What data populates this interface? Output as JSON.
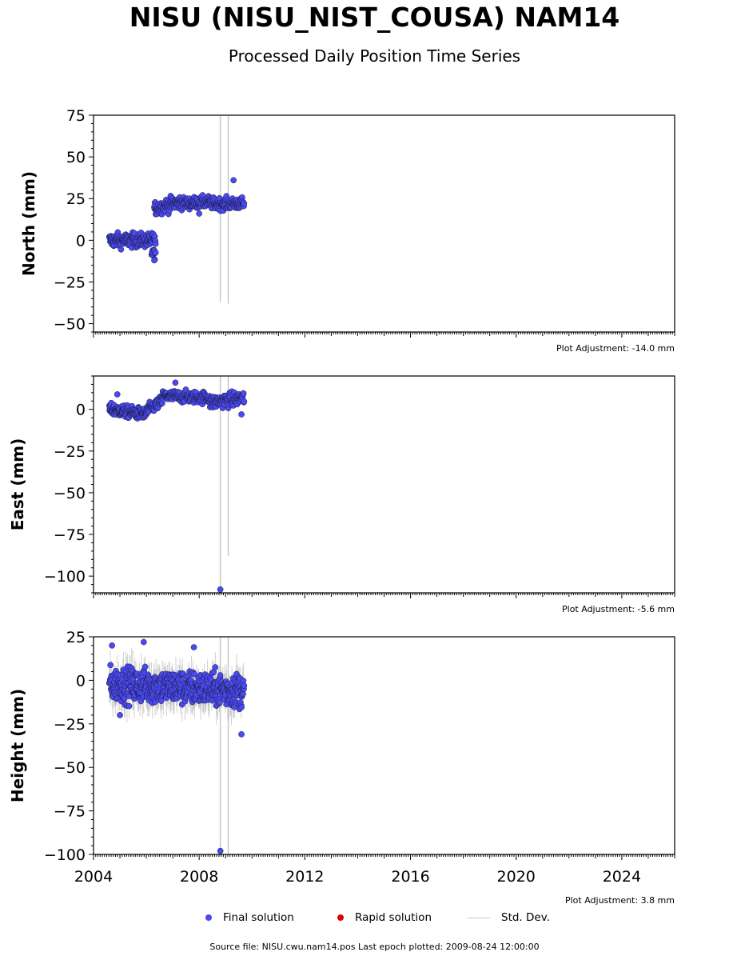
{
  "title": "NISU (NISU_NIST_COUSA) NAM14",
  "subtitle": "Processed Daily Position Time Series",
  "legend": {
    "final": {
      "label": "Final solution",
      "color": "#4a4af0"
    },
    "rapid": {
      "label": "Rapid solution",
      "color": "#e00000"
    },
    "std": {
      "label": "Std. Dev.",
      "color": "#c8c8c8"
    }
  },
  "source_note": "Source file: NISU.cwu.nam14.pos  Last epoch plotted: 2009-08-24 12:00:00",
  "chart_data": [
    {
      "type": "scatter",
      "ylabel": "North (mm)",
      "xlim": [
        2004,
        2026
      ],
      "ylim": [
        -55,
        75
      ],
      "yticks": [
        75,
        50,
        25,
        0,
        -25,
        -50
      ],
      "yticklabels": [
        "75",
        "50",
        "25",
        "0",
        "−25",
        "−50"
      ],
      "adjustment": "Plot Adjustment: -14.0 mm",
      "std_spikes": [
        [
          2008.8,
          -37,
          75
        ],
        [
          2009.1,
          -38,
          75
        ]
      ],
      "segments": [
        {
          "x0": 2004.6,
          "x1": 2006.35,
          "y0": 0,
          "y1": 0,
          "spread": 3,
          "n": 160
        },
        {
          "x0": 2006.2,
          "x1": 2006.35,
          "y0": -8,
          "y1": -8,
          "spread": 2,
          "n": 10
        },
        {
          "x0": 2006.3,
          "x1": 2007.3,
          "y0": 19,
          "y1": 23,
          "spread": 3,
          "n": 90
        },
        {
          "x0": 2007.3,
          "x1": 2008.4,
          "y0": 22,
          "y1": 23,
          "spread": 2.5,
          "n": 90
        },
        {
          "x0": 2008.4,
          "x1": 2009.7,
          "y0": 22,
          "y1": 22,
          "spread": 2.5,
          "n": 110
        }
      ],
      "outliers": [
        [
          2009.3,
          36
        ],
        [
          2006.3,
          -12
        ],
        [
          2008.0,
          16
        ]
      ]
    },
    {
      "type": "scatter",
      "ylabel": "East (mm)",
      "xlim": [
        2004,
        2026
      ],
      "ylim": [
        -110,
        20
      ],
      "yticks": [
        0,
        -25,
        -50,
        -75,
        -100
      ],
      "yticklabels": [
        "0",
        "−25",
        "−50",
        "−75",
        "−100"
      ],
      "adjustment": "Plot Adjustment: -5.6 mm",
      "std_spikes": [
        [
          2008.8,
          -108,
          20
        ],
        [
          2009.1,
          -88,
          20
        ]
      ],
      "segments": [
        {
          "x0": 2004.6,
          "x1": 2006.0,
          "y0": 0,
          "y1": -3,
          "spread": 2.5,
          "n": 140
        },
        {
          "x0": 2006.0,
          "x1": 2006.6,
          "y0": -1,
          "y1": 5,
          "spread": 2.5,
          "n": 50
        },
        {
          "x0": 2006.6,
          "x1": 2008.4,
          "y0": 8,
          "y1": 7,
          "spread": 2.5,
          "n": 150
        },
        {
          "x0": 2008.4,
          "x1": 2009.7,
          "y0": 4,
          "y1": 7,
          "spread": 3,
          "n": 110
        }
      ],
      "outliers": [
        [
          2008.8,
          -108
        ],
        [
          2007.1,
          16
        ],
        [
          2004.9,
          9
        ],
        [
          2009.6,
          -3
        ]
      ]
    },
    {
      "type": "scatter",
      "ylabel": "Height (mm)",
      "xlim": [
        2004,
        2026
      ],
      "ylim": [
        -100,
        25
      ],
      "yticks": [
        25,
        0,
        -25,
        -50,
        -75,
        -100
      ],
      "yticklabels": [
        "25",
        "0",
        "−25",
        "−50",
        "−75",
        "−100"
      ],
      "xticks": [
        2004,
        2008,
        2012,
        2016,
        2020,
        2024
      ],
      "xticklabels": [
        "2004",
        "2008",
        "2012",
        "2016",
        "2020",
        "2024"
      ],
      "adjustment": "Plot Adjustment: 3.8 mm",
      "std_spikes": [
        [
          2008.8,
          -100,
          25
        ],
        [
          2009.1,
          -100,
          25
        ]
      ],
      "segments": [
        {
          "x0": 2004.6,
          "x1": 2009.7,
          "y0": -2,
          "y1": -6,
          "spread": 7,
          "n": 520
        }
      ],
      "outliers": [
        [
          2008.8,
          -98
        ],
        [
          2005.9,
          22
        ],
        [
          2009.6,
          -31
        ],
        [
          2005.0,
          -20
        ],
        [
          2004.7,
          20
        ],
        [
          2007.8,
          19
        ]
      ]
    }
  ]
}
